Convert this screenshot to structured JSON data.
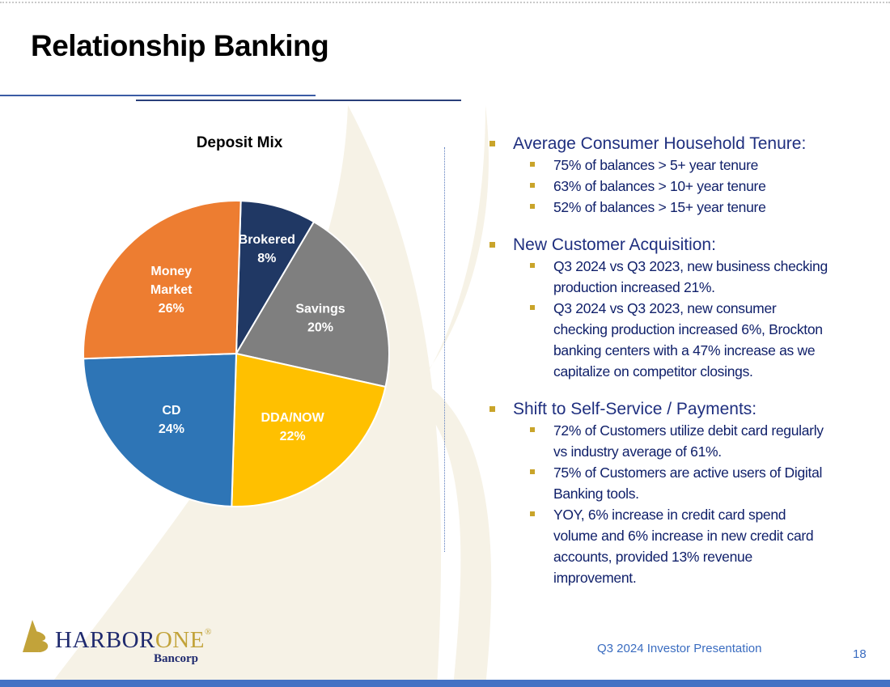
{
  "header": {
    "title": "Relationship Banking"
  },
  "chart_data": {
    "type": "pie",
    "title": "Deposit Mix",
    "start": "top, clockwise",
    "slices": [
      {
        "label": "Brokered",
        "value": 8,
        "display": "8%",
        "color": "#203864"
      },
      {
        "label": "Savings",
        "value": 20,
        "display": "20%",
        "color": "#7f7f7f"
      },
      {
        "label": "DDA/NOW",
        "value": 22,
        "display": "22%",
        "color": "#ffc000"
      },
      {
        "label": "CD",
        "value": 24,
        "display": "24%",
        "color": "#2e75b6"
      },
      {
        "label": "Money Market",
        "value": 26,
        "display": "26%",
        "color": "#ed7d31"
      }
    ]
  },
  "bullets": [
    {
      "title": "Average Consumer Household Tenure:",
      "items": [
        "75% of balances > 5+ year tenure",
        "63% of balances > 10+ year tenure",
        "52% of balances > 15+ year tenure"
      ]
    },
    {
      "title": "New Customer Acquisition:",
      "items": [
        "Q3 2024 vs Q3 2023, new business checking production increased 21%.",
        "Q3 2024 vs Q3 2023, new consumer checking production increased 6%, Brockton banking centers with a 47% increase as we capitalize on competitor closings."
      ]
    },
    {
      "title": "Shift to Self-Service / Payments:",
      "items": [
        "72% of Customers utilize debit card regularly vs industry average of 61%.",
        "75% of Customers are active users of Digital Banking tools.",
        "YOY, 6% increase in credit card spend volume and 6% increase in new credit card accounts, provided 13% revenue improvement."
      ]
    }
  ],
  "footer": {
    "text": "Q3 2024 Investor Presentation",
    "page": "18",
    "logo_name": "HARBORONE",
    "logo_sub": "Bancorp"
  },
  "colors": {
    "accent": "#4472c4",
    "gold": "#c9a42a",
    "navy": "#1f2f7f"
  }
}
